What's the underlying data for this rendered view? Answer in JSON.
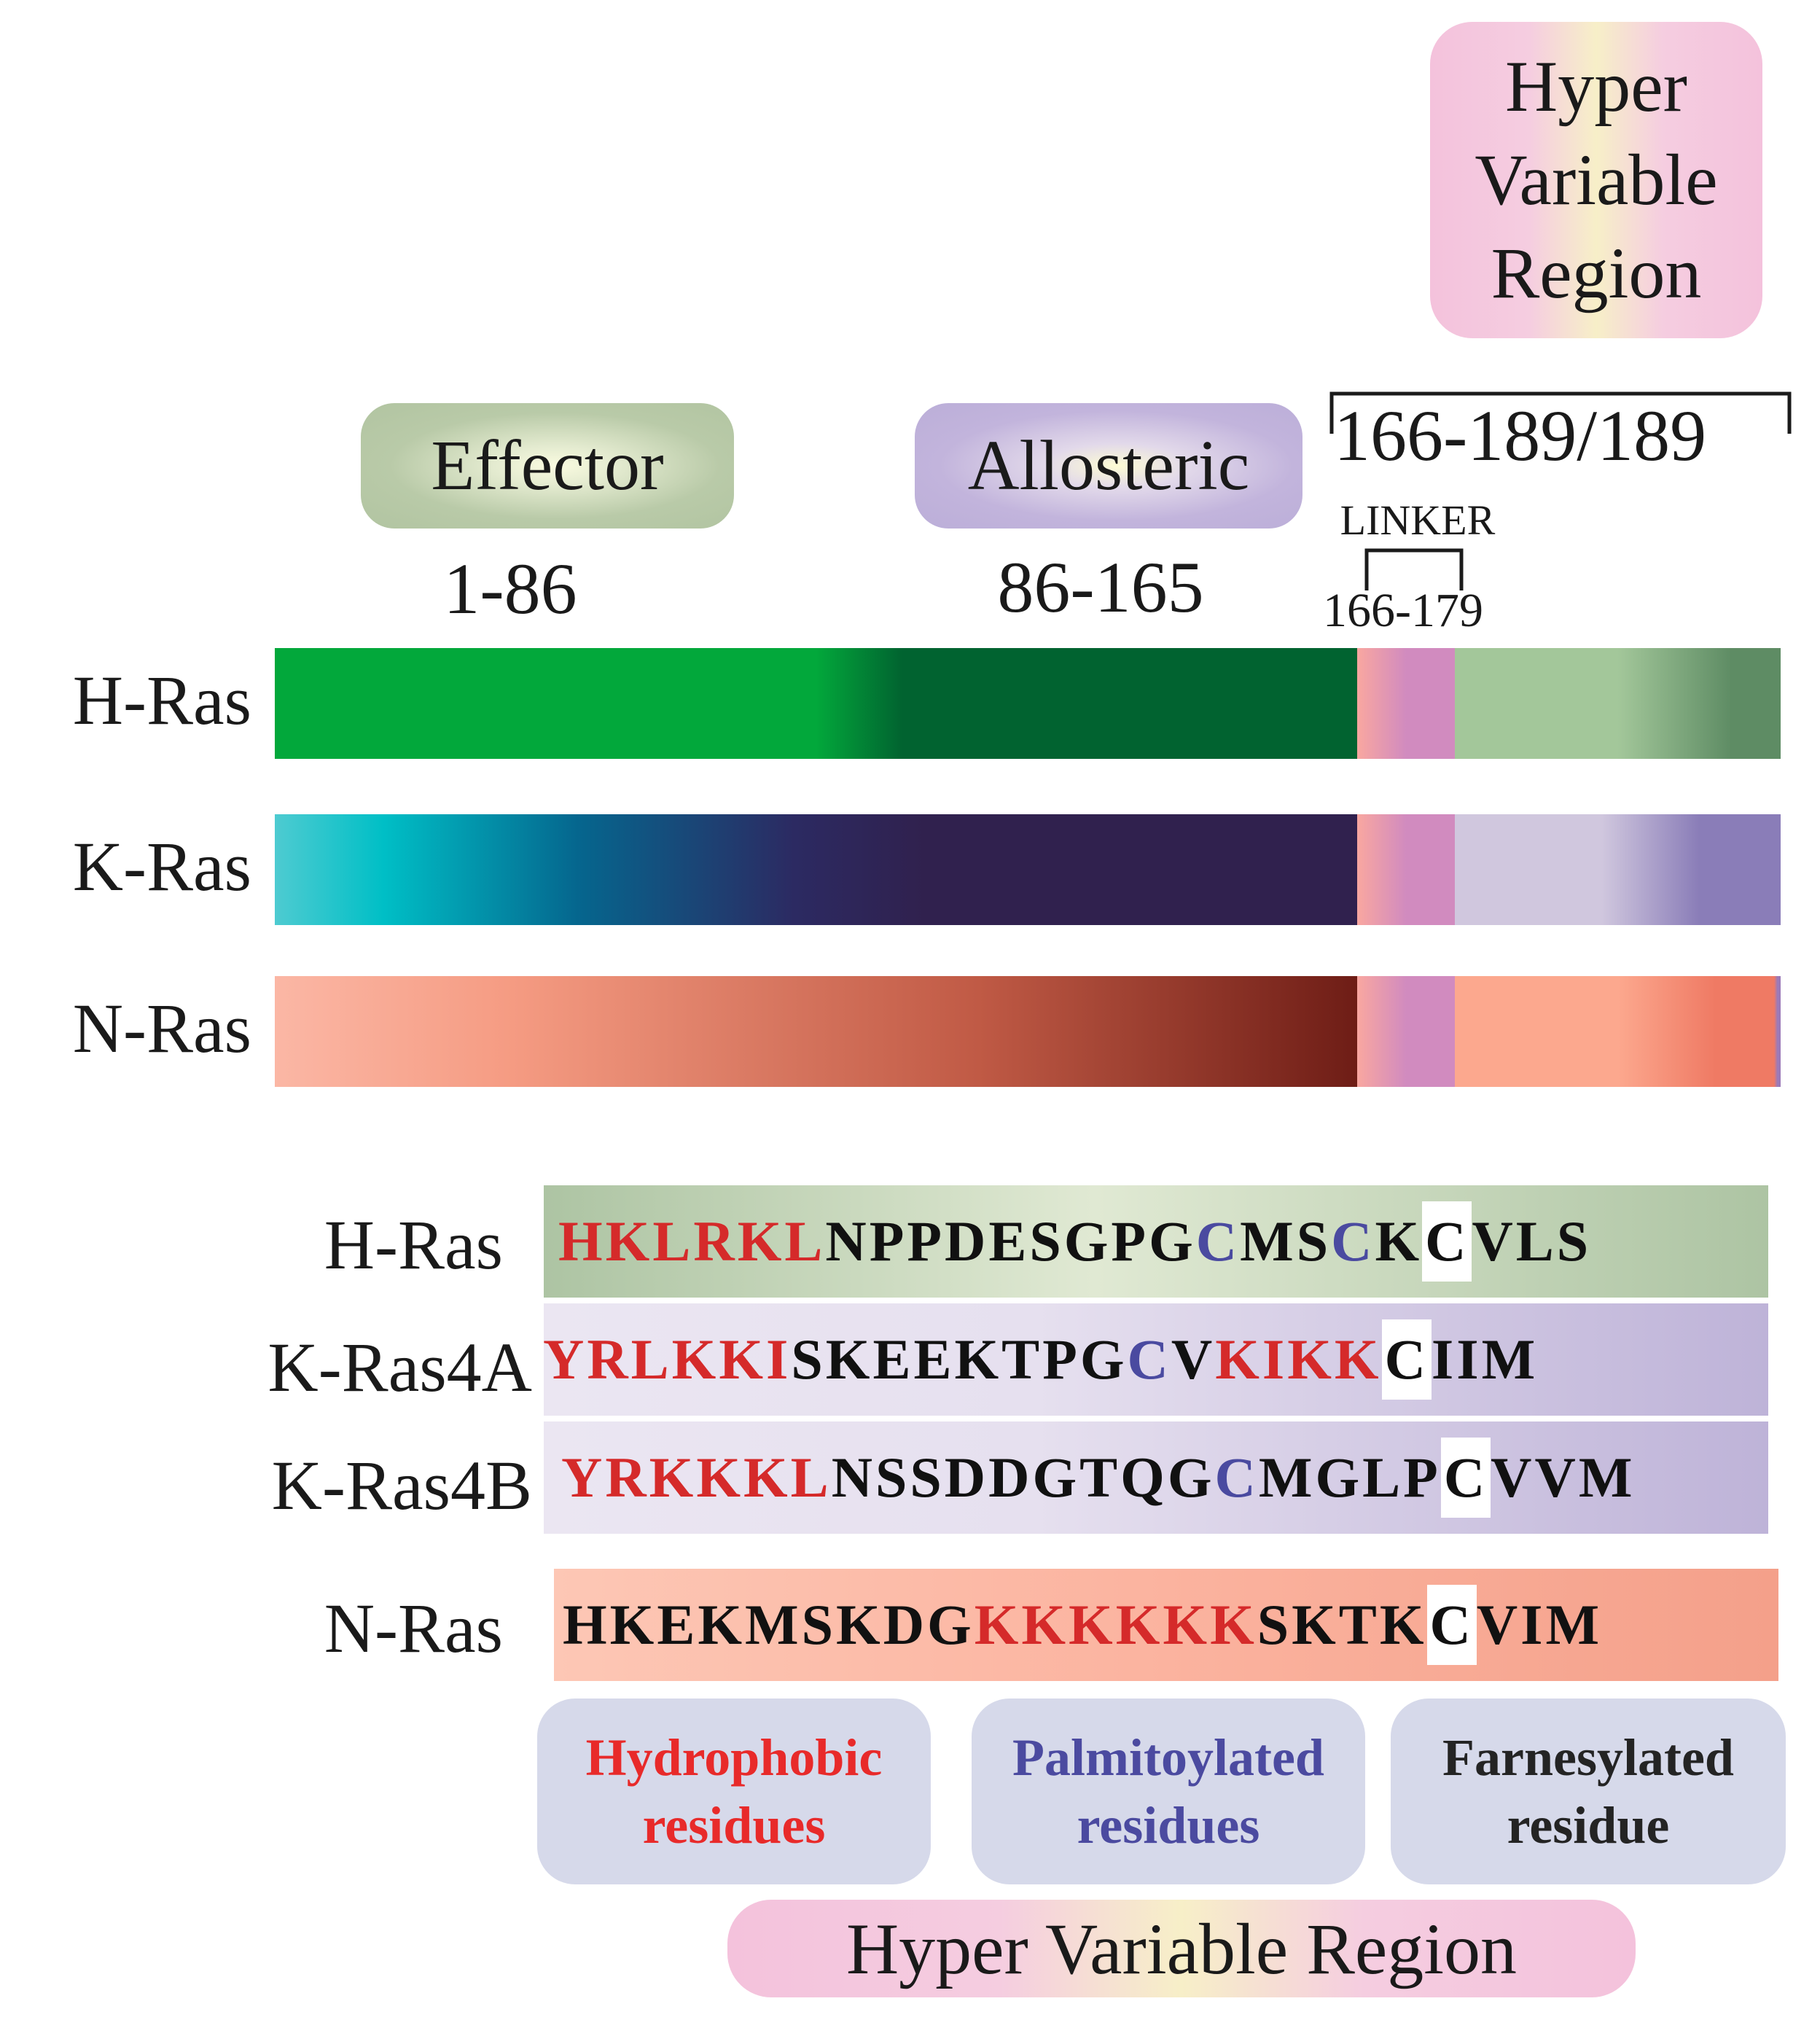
{
  "domains": {
    "effector": {
      "label": "Effector",
      "range": "1-86"
    },
    "allosteric": {
      "label": "Allosteric",
      "range": "86-165"
    },
    "hvr": {
      "label": "Hyper Variable Region",
      "label_lines": [
        "Hyper",
        "Variable",
        "Region"
      ],
      "range": "166-189/189"
    },
    "linker": {
      "label": "LINKER",
      "range": "166-179"
    }
  },
  "proteins": [
    {
      "name": "H-Ras",
      "colors": [
        "#02a83b",
        "#02a83b",
        "#016330",
        "#016330"
      ],
      "hvr_colors": [
        "#a3c79a",
        "#a3c79a",
        "#5e8c64"
      ]
    },
    {
      "name": "K-Ras",
      "colors": [
        "#4ecbd1",
        "#00bfc6",
        "#05668e",
        "#2c2a62",
        "#30214e"
      ],
      "hvr_colors": [
        "#d0c7de",
        "#d0c7de",
        "#8a7db8"
      ]
    },
    {
      "name": "N-Ras",
      "colors": [
        "#fbb7a5",
        "#f59b82",
        "#c05a45",
        "#6e1d16"
      ],
      "hvr_colors": [
        "#fca88e",
        "#fca88e",
        "#ef7a64"
      ]
    }
  ],
  "linker_colors": [
    "#f9a7a0",
    "#d18bbf"
  ],
  "sequences": [
    {
      "name": "H-Ras",
      "bg": [
        "#adc4a3",
        "#e0e9d3",
        "#adc4a3"
      ],
      "residues": [
        [
          "HKLRKL",
          "hydro"
        ],
        [
          "NPPDESGPG",
          "plain"
        ],
        [
          "C",
          "palm"
        ],
        [
          "MS",
          "plain"
        ],
        [
          "C",
          "palm"
        ],
        [
          "K",
          "plain"
        ],
        [
          "C",
          "farn"
        ],
        [
          "VLS",
          "plain"
        ]
      ]
    },
    {
      "name": "K-Ras4A",
      "bg": [
        "#ebe6f2",
        "#e6e0ef",
        "#beb3d8"
      ],
      "residues": [
        [
          "YRLKKI",
          "hydro"
        ],
        [
          "SKEEKTPG",
          "plain"
        ],
        [
          "C",
          "palm"
        ],
        [
          "V",
          "plain"
        ],
        [
          "KIKK",
          "hydro"
        ],
        [
          "C",
          "farn"
        ],
        [
          "IIM",
          "plain"
        ]
      ]
    },
    {
      "name": "K-Ras4B",
      "bg": [
        "#ebe6f2",
        "#e6e0ef",
        "#beb3d8"
      ],
      "residues": [
        [
          "YRKKKL",
          "hydro"
        ],
        [
          "NSSDDGTQG",
          "plain"
        ],
        [
          "C",
          "palm"
        ],
        [
          "MGLP",
          "plain"
        ],
        [
          "C",
          "farn"
        ],
        [
          "VVM",
          "plain"
        ]
      ]
    },
    {
      "name": "N-Ras",
      "bg": [
        "#fdc7b5",
        "#fbb39f",
        "#f4a08a"
      ],
      "residues": [
        [
          "HKEKMSKDG",
          "plain"
        ],
        [
          "KKKKKK",
          "hydro"
        ],
        [
          "SKTK",
          "plain"
        ],
        [
          "C",
          "farn"
        ],
        [
          "VIM",
          "plain"
        ]
      ]
    }
  ],
  "legend": {
    "hydrophobic": "Hydrophobic residues",
    "palmitoylated": "Palmitoylated residues",
    "farnesylated": "Farnesylated residue"
  }
}
